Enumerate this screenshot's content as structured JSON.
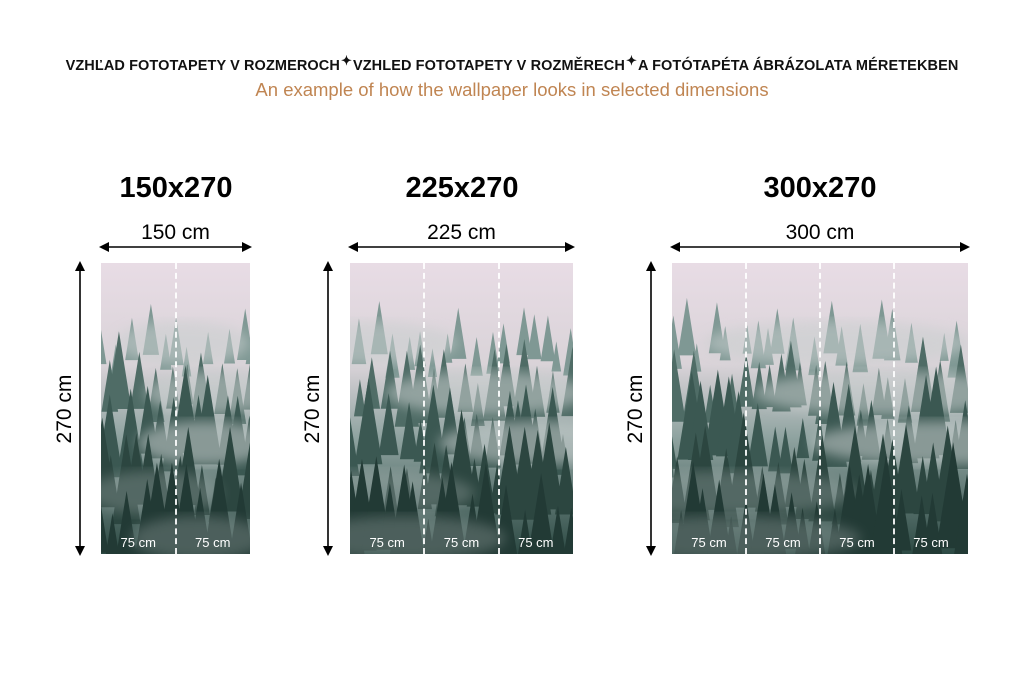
{
  "header": {
    "languages": [
      "VZHĽAD FOTOTAPETY V ROZMEROCH",
      "VZHLED FOTOTAPETY V ROZMĚRECH",
      "A FOTÓTAPÉTA ÁBRÁZOLATA MÉRETEKBEN"
    ],
    "separator_icon": "sparkle-icon",
    "subtitle": "An example of how the wallpaper looks in selected dimensions",
    "subtitle_color": "#c08552"
  },
  "panels": [
    {
      "title": "150x270",
      "width_label": "150 cm",
      "height_label": "270 cm",
      "strips": [
        "75 cm",
        "75 cm"
      ]
    },
    {
      "title": "225x270",
      "width_label": "225 cm",
      "height_label": "270 cm",
      "strips": [
        "75 cm",
        "75 cm",
        "75 cm"
      ]
    },
    {
      "title": "300x270",
      "width_label": "300 cm",
      "height_label": "270 cm",
      "strips": [
        "75 cm",
        "75 cm",
        "75 cm",
        "75 cm"
      ]
    }
  ],
  "colors": {
    "sky": "#e8dce5",
    "forest": "#2d4a44",
    "mist": "#c9cfcf"
  }
}
